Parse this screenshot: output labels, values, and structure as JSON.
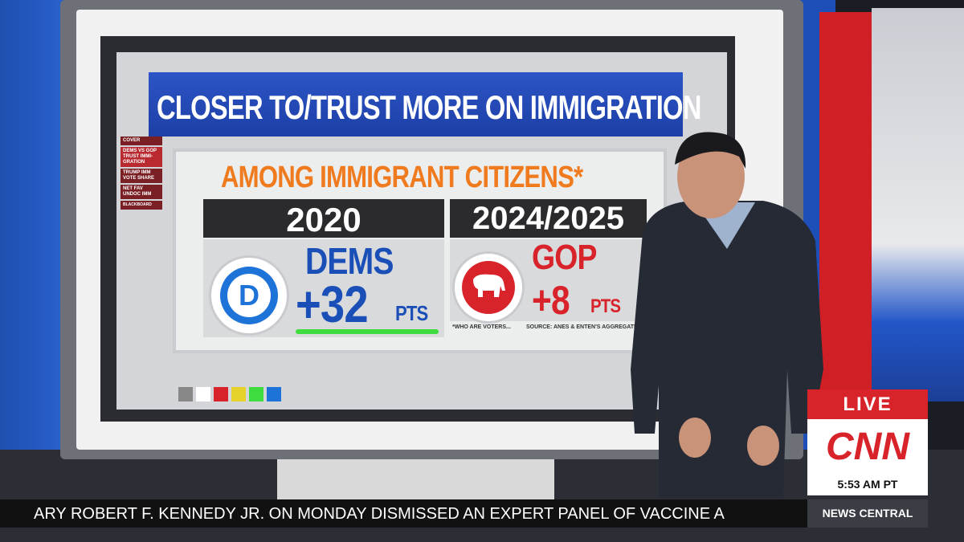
{
  "title": "CLOSER TO/TRUST MORE ON IMMIGRATION",
  "subtitle": "AMONG IMMIGRANT CITIZENS*",
  "sidebar": [
    "COVER",
    "DEMS VS GOP TRUST IMMI-GRATION",
    "TRUMP IMM VOTE SHARE",
    "NET FAV UNDOC IMM",
    "BLACKBOARD"
  ],
  "panels": [
    {
      "year": "2020",
      "logo": "D",
      "party": "DEMS",
      "margin": "+32",
      "unit": "PTS"
    },
    {
      "year": "2024/2025",
      "party": "GOP",
      "margin": "+8",
      "unit": "PTS"
    }
  ],
  "footnote": "*WHO ARE VOTERS...",
  "source": "SOURCE: ANES & ENTEN'S AGGREGATE",
  "bug": {
    "live": "LIVE",
    "network": "CNN",
    "time": "5:53 AM PT",
    "show": "NEWS CENTRAL"
  },
  "ticker": "ARY ROBERT F. KENNEDY JR. ON MONDAY DISMISSED AN EXPERT PANEL OF VACCINE A"
}
